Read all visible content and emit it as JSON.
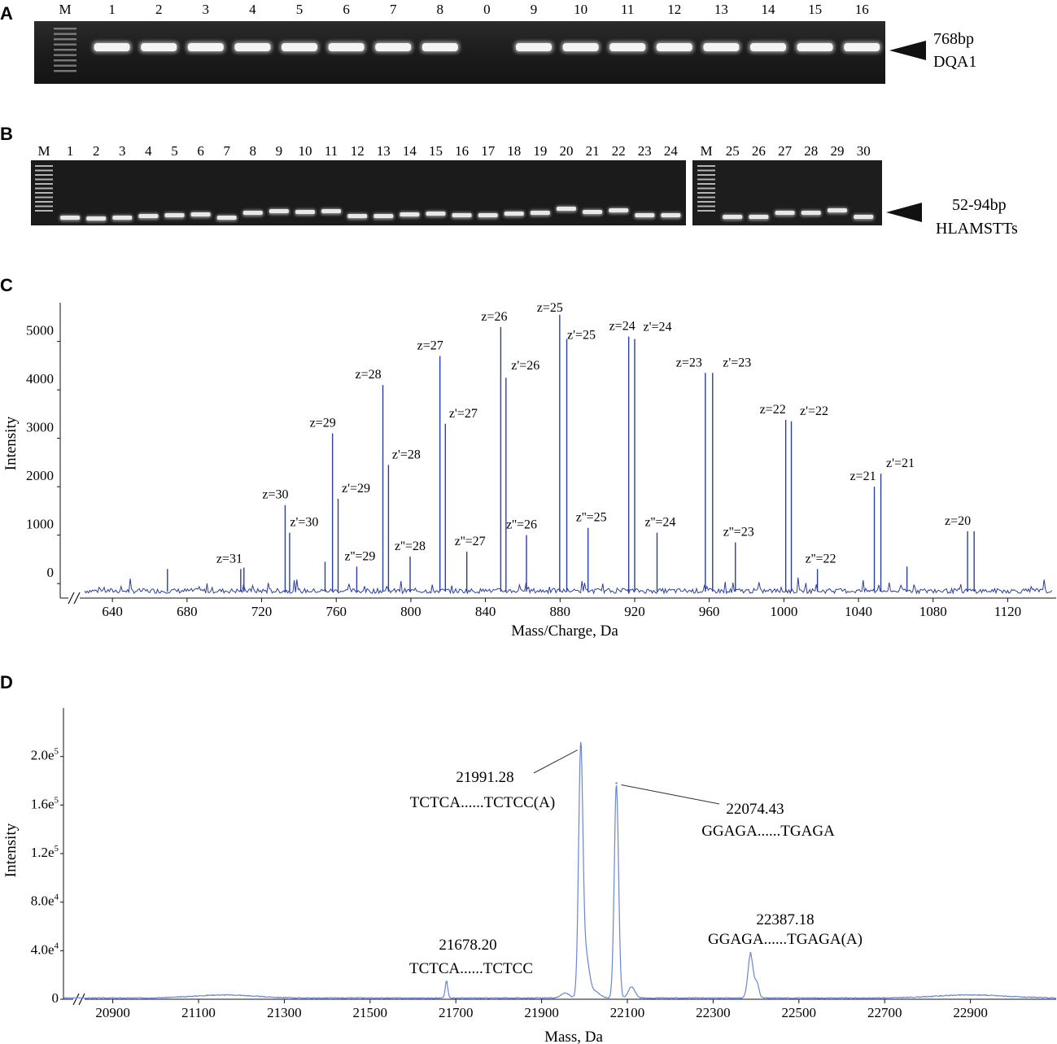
{
  "panels": {
    "A": {
      "letter": "A",
      "lanes": [
        "M",
        "1",
        "2",
        "3",
        "4",
        "5",
        "6",
        "7",
        "8",
        "0",
        "9",
        "10",
        "11",
        "12",
        "13",
        "14",
        "15",
        "16"
      ],
      "marker_size": "768bp",
      "marker_gene": "DQA1"
    },
    "B": {
      "letter": "B",
      "lanes_left": [
        "M",
        "1",
        "2",
        "3",
        "4",
        "5",
        "6",
        "7",
        "8",
        "9",
        "10",
        "11",
        "12",
        "13",
        "14",
        "15",
        "16",
        "17",
        "18",
        "19",
        "20",
        "21",
        "22",
        "23",
        "24"
      ],
      "lanes_right": [
        "M",
        "25",
        "26",
        "27",
        "28",
        "29",
        "30"
      ],
      "marker_size": "52-94bp",
      "marker_gene": "HLAMSTTs"
    },
    "C": {
      "letter": "C"
    },
    "D": {
      "letter": "D"
    }
  },
  "chart_data": [
    {
      "type": "line",
      "panel": "C",
      "xlabel": "Mass/Charge, Da",
      "ylabel": "Intensity",
      "xlim": [
        612,
        1146
      ],
      "ylim": [
        -300,
        5800
      ],
      "x_ticks": [
        640,
        680,
        720,
        760,
        800,
        840,
        880,
        920,
        960,
        1000,
        1040,
        1080,
        1120
      ],
      "y_ticks": [
        0,
        1000,
        2000,
        3000,
        4000,
        5000
      ],
      "color": "#2a3f9d",
      "peaks": [
        {
          "x": 669.5,
          "y": 300,
          "label": ""
        },
        {
          "x": 708.8,
          "y": 300,
          "label": "z=31"
        },
        {
          "x": 710.5,
          "y": 330,
          "label": ""
        },
        {
          "x": 732.6,
          "y": 1620,
          "label": "z=30"
        },
        {
          "x": 735.0,
          "y": 1050,
          "label": "z'=30"
        },
        {
          "x": 754.0,
          "y": 450,
          "label": ""
        },
        {
          "x": 758.0,
          "y": 3100,
          "label": "z=29"
        },
        {
          "x": 761.0,
          "y": 1750,
          "label": "z'=29"
        },
        {
          "x": 771.0,
          "y": 350,
          "label": "z''=29"
        },
        {
          "x": 785.0,
          "y": 4100,
          "label": "z=28"
        },
        {
          "x": 788.0,
          "y": 2450,
          "label": "z'=28"
        },
        {
          "x": 799.6,
          "y": 560,
          "label": "z''=28"
        },
        {
          "x": 815.6,
          "y": 4700,
          "label": "z=27"
        },
        {
          "x": 818.5,
          "y": 3300,
          "label": "z'=27"
        },
        {
          "x": 830.0,
          "y": 660,
          "label": "z''=27"
        },
        {
          "x": 848.2,
          "y": 5300,
          "label": "z=26"
        },
        {
          "x": 851.0,
          "y": 4250,
          "label": "z'=26"
        },
        {
          "x": 862.0,
          "y": 1000,
          "label": "z''=26"
        },
        {
          "x": 879.8,
          "y": 5550,
          "label": "z=25"
        },
        {
          "x": 883.6,
          "y": 5050,
          "label": "z'=25"
        },
        {
          "x": 895.0,
          "y": 1150,
          "label": "z''=25"
        },
        {
          "x": 916.8,
          "y": 5100,
          "label": "z=24"
        },
        {
          "x": 920.0,
          "y": 5050,
          "label": "z'=24"
        },
        {
          "x": 932.0,
          "y": 1050,
          "label": "z''=24"
        },
        {
          "x": 957.9,
          "y": 4350,
          "label": "z=23"
        },
        {
          "x": 961.8,
          "y": 4350,
          "label": "z'=23"
        },
        {
          "x": 974.0,
          "y": 850,
          "label": "z''=23"
        },
        {
          "x": 1001.0,
          "y": 3380,
          "label": "z=22"
        },
        {
          "x": 1004.0,
          "y": 3350,
          "label": "z'=22"
        },
        {
          "x": 1018.0,
          "y": 300,
          "label": "z''=22"
        },
        {
          "x": 1048.5,
          "y": 2000,
          "label": "z=21"
        },
        {
          "x": 1052.0,
          "y": 2270,
          "label": "z'=21"
        },
        {
          "x": 1066.0,
          "y": 350,
          "label": ""
        },
        {
          "x": 1098.5,
          "y": 1080,
          "label": "z=20"
        },
        {
          "x": 1102.0,
          "y": 1080,
          "label": ""
        }
      ]
    },
    {
      "type": "line",
      "panel": "D",
      "xlabel": "Mass, Da",
      "ylabel": "Intensity",
      "xlim": [
        20785,
        23100
      ],
      "ylim": [
        0,
        240000
      ],
      "x_ticks": [
        20900,
        21100,
        21300,
        21500,
        21700,
        21900,
        22100,
        22300,
        22500,
        22700,
        22900
      ],
      "y_ticks": [
        0,
        40000,
        80000,
        120000,
        160000,
        200000
      ],
      "y_tick_labels": [
        "0",
        "4.0e4",
        "8.0e4",
        "1.2e5",
        "1.6e5",
        "2.0e5"
      ],
      "color": "#6b86cf",
      "peaks": [
        {
          "x": 21678.2,
          "y": 14000,
          "mass": "21678.20",
          "sequence": "TCTCA......TCTCC"
        },
        {
          "x": 21991.28,
          "y": 208000,
          "mass": "21991.28",
          "sequence": "TCTCA......TCTCC(A)"
        },
        {
          "x": 22074.43,
          "y": 178000,
          "mass": "22074.43",
          "sequence": "GGAGA......TGAGA"
        },
        {
          "x": 22387.18,
          "y": 38000,
          "mass": "22387.18",
          "sequence": "GGAGA......TGAGA(A)"
        }
      ]
    }
  ]
}
